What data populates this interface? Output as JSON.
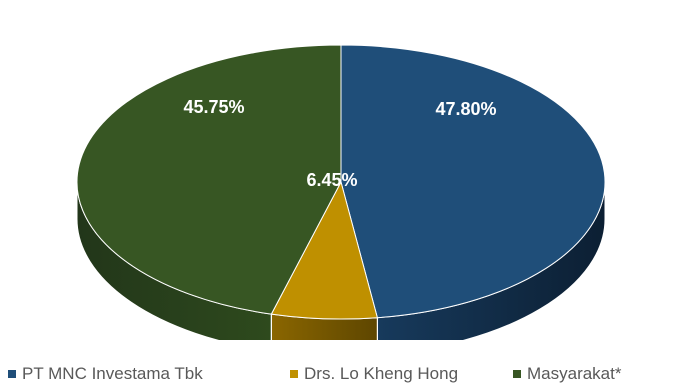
{
  "chart_data": {
    "type": "pie",
    "title": "",
    "style": "3d",
    "legend_position": "bottom",
    "slices": [
      {
        "name": "PT MNC Investama Tbk",
        "value": 47.8,
        "label": "47.80%",
        "color": "#1f4e79"
      },
      {
        "name": "Drs. Lo Kheng Hong",
        "value": 6.45,
        "label": "6.45%",
        "color": "#bf9000"
      },
      {
        "name": "Masyarakat*",
        "value": 45.75,
        "label": "45.75%",
        "color": "#375623"
      }
    ]
  }
}
